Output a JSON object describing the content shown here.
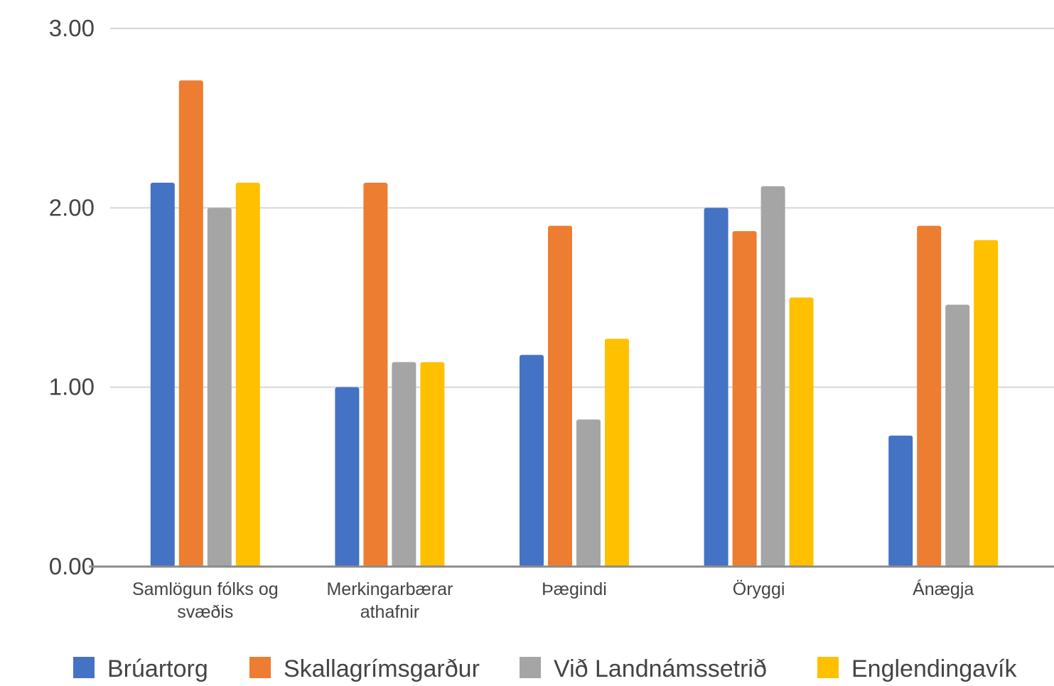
{
  "chart_data": {
    "type": "bar",
    "title": "",
    "xlabel": "",
    "ylabel": "",
    "ylim": [
      0,
      3
    ],
    "yticks": [
      "0.00",
      "1.00",
      "2.00",
      "3.00"
    ],
    "grid": true,
    "legend_position": "bottom",
    "categories": [
      [
        "Samlögun fólks og",
        "svæðis"
      ],
      [
        "Merkingarbærar",
        "athafnir"
      ],
      [
        "Þægindi"
      ],
      [
        "Öryggi"
      ],
      [
        "Ánægja"
      ]
    ],
    "series": [
      {
        "name": "Brúartorg",
        "color": "#4472C4",
        "values": [
          2.14,
          1.0,
          1.18,
          2.0,
          0.73
        ]
      },
      {
        "name": "Skallagrímsgarður",
        "color": "#ED7D31",
        "values": [
          2.71,
          2.14,
          1.9,
          1.87,
          1.9
        ]
      },
      {
        "name": "Við Landnámssetrið",
        "color": "#A5A5A5",
        "values": [
          2.0,
          1.14,
          0.82,
          2.12,
          1.46
        ]
      },
      {
        "name": "Englendingavík",
        "color": "#FFC000",
        "values": [
          2.14,
          1.14,
          1.27,
          1.5,
          1.82
        ]
      }
    ]
  }
}
